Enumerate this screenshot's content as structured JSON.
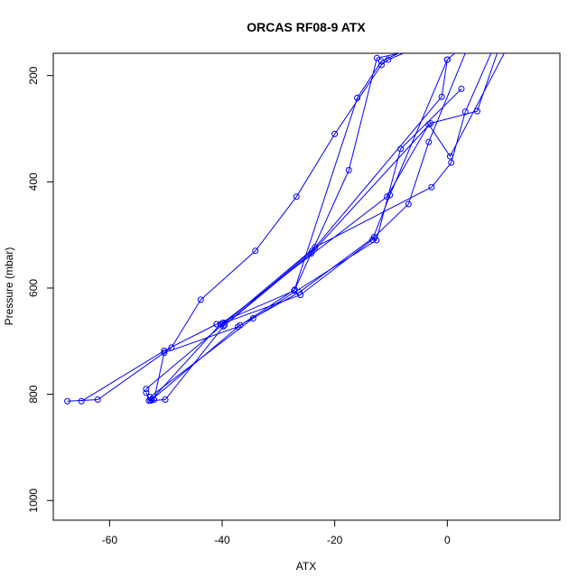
{
  "chart_data": {
    "type": "line",
    "title": "ORCAS RF08-9 ATX",
    "xlabel": "ATX",
    "ylabel": "Pressure (mbar)",
    "xlim": [
      -70,
      20
    ],
    "ylim": [
      1037,
      158
    ],
    "y_reversed": true,
    "x_ticks": [
      -60,
      -40,
      -20,
      0
    ],
    "y_ticks": [
      200,
      400,
      600,
      800,
      1000
    ],
    "series_color": "#0000ff",
    "series": [
      {
        "x": [
          -67.5,
          -62.1,
          -49,
          -43.8,
          -34.1,
          -26.8,
          -20,
          -11.7,
          -10.5,
          -6
        ],
        "y": [
          813,
          810,
          712,
          622,
          530,
          428,
          310,
          180,
          170,
          150
        ]
      },
      {
        "x": [
          -65,
          -50.3,
          -41,
          -27.2,
          -16,
          -11.7,
          -7
        ],
        "y": [
          813,
          718,
          668,
          605,
          242,
          173,
          150
        ]
      },
      {
        "x": [
          -53.5,
          -52.7,
          -40.3,
          -26.1,
          -13.3,
          -10.2,
          0
        ],
        "y": [
          797,
          812,
          668,
          613,
          509,
          425,
          170
        ]
      },
      {
        "x": [
          -53,
          -50.1,
          -39.6,
          -24,
          -1,
          0,
          2.2
        ],
        "y": [
          812,
          810,
          670,
          530,
          240,
          170,
          150
        ]
      },
      {
        "x": [
          -52.1,
          -50.3,
          -37.2,
          -27.1,
          -17.5,
          -12.5,
          -5
        ],
        "y": [
          810,
          722,
          673,
          603,
          378,
          167,
          150
        ]
      },
      {
        "x": [
          -52.5,
          -36.8,
          -26.3,
          -13,
          -6.9,
          -3.3,
          3.5
        ],
        "y": [
          810,
          670,
          608,
          504,
          442,
          325,
          150
        ]
      },
      {
        "x": [
          -52.8,
          -34.5,
          -12.6,
          -8.3,
          2.5
        ],
        "y": [
          805,
          657,
          510,
          338,
          225
        ]
      },
      {
        "x": [
          -53.5,
          -23.5,
          -2.8,
          0.7,
          3.2,
          8.1
        ],
        "y": [
          790,
          523,
          410,
          364,
          268,
          150
        ]
      },
      {
        "x": [
          -39.8,
          -10.7,
          -3.3,
          0.5,
          10.5
        ],
        "y": [
          665,
          428,
          292,
          352,
          150
        ]
      },
      {
        "x": [
          -39.8,
          -24.2,
          -3,
          5.3,
          9.1
        ],
        "y": [
          672,
          535,
          290,
          267,
          150
        ]
      }
    ]
  }
}
